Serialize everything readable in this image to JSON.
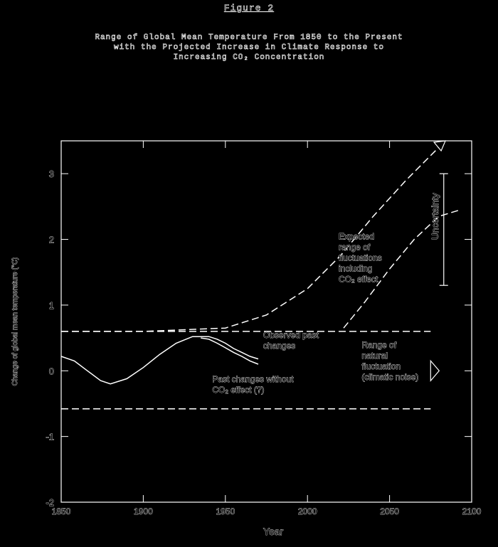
{
  "figure_label": "Figure 2",
  "chart_data": {
    "type": "line",
    "title": "Range of Global Mean Temperature From 1850 to the Present\nwith the Projected Increase in Climate Response to\nIncreasing CO₂ Concentration",
    "xlabel": "Year",
    "ylabel": "Change of global mean temperature (°C)",
    "xlim": [
      1850,
      2100
    ],
    "ylim": [
      -2,
      3.5
    ],
    "xticks": [
      1850,
      1900,
      1950,
      2000,
      2050,
      2100
    ],
    "yticks": [
      -2,
      -1,
      0,
      1,
      2,
      3
    ],
    "xtick_labels": [
      "1850",
      "1900",
      "1950",
      "2000",
      "2050",
      "2100"
    ],
    "ytick_labels": [
      "-2",
      "-1",
      "0",
      "1",
      "2",
      "3"
    ],
    "grid": false,
    "series": [
      {
        "name": "Observed past changes",
        "style": "solid",
        "x": [
          1850,
          1858,
          1866,
          1874,
          1880,
          1890,
          1900,
          1910,
          1920,
          1930,
          1940,
          1945,
          1950,
          1955,
          1960,
          1965,
          1970
        ],
        "y": [
          0.22,
          0.15,
          0.0,
          -0.15,
          -0.2,
          -0.12,
          0.05,
          0.25,
          0.42,
          0.52,
          0.52,
          0.48,
          0.42,
          0.34,
          0.28,
          0.22,
          0.18
        ]
      },
      {
        "name": "Past changes without CO₂ effect (?)",
        "style": "solid",
        "x": [
          1935,
          1940,
          1945,
          1950,
          1955,
          1960,
          1965,
          1970
        ],
        "y": [
          0.5,
          0.48,
          0.42,
          0.35,
          0.28,
          0.22,
          0.15,
          0.1
        ]
      },
      {
        "name": "Expected range of fluctuations including CO₂ effect (upper)",
        "style": "dashed",
        "x": [
          1850,
          1900,
          1950,
          1975,
          2000,
          2020,
          2040,
          2060,
          2080
        ],
        "y": [
          0.6,
          0.6,
          0.65,
          0.85,
          1.25,
          1.75,
          2.35,
          2.9,
          3.4
        ]
      },
      {
        "name": "Expected range of fluctuations including CO₂ effect (lower)",
        "style": "dashed",
        "x": [
          2022,
          2035,
          2050,
          2065,
          2080,
          2093
        ],
        "y": [
          0.65,
          1.05,
          1.55,
          2.0,
          2.35,
          2.45
        ]
      },
      {
        "name": "Range of natural fluctuation (climatic noise) (upper)",
        "style": "dashed",
        "x": [
          1850,
          2075
        ],
        "y": [
          0.6,
          0.6
        ]
      },
      {
        "name": "Range of natural fluctuation (climatic noise) (lower)",
        "style": "dashed",
        "x": [
          1850,
          2075
        ],
        "y": [
          -0.58,
          -0.58
        ]
      }
    ],
    "annotations": [
      {
        "text": "Observed past changes",
        "lines": [
          "Observed past",
          "changes"
        ],
        "x": 1973,
        "y": 0.5
      },
      {
        "text": "Past changes without CO₂ effect (?)",
        "lines": [
          "Past changes without",
          "CO₂ effect (?)"
        ],
        "x": 1942,
        "y": -0.17
      },
      {
        "text": "Expected range of fluctuations including CO₂ effect",
        "lines": [
          "Expected",
          "range of",
          "fluctuations",
          "including",
          "CO₂ effect"
        ],
        "x": 2019,
        "y": 2.0
      },
      {
        "text": "Range of natural fluctuation (climatic noise)",
        "lines": [
          "Range of",
          "natural",
          "fluctuation",
          "(climatic noise)"
        ],
        "x": 2033,
        "y": 0.35
      },
      {
        "text": "Uncertainty",
        "lines": [
          "Uncertainty"
        ],
        "x": 2083,
        "y": 2.35,
        "rotated": true
      }
    ],
    "uncertainty_bar": {
      "x": 2083,
      "y_low": 1.3,
      "y_high": 3.0
    }
  }
}
